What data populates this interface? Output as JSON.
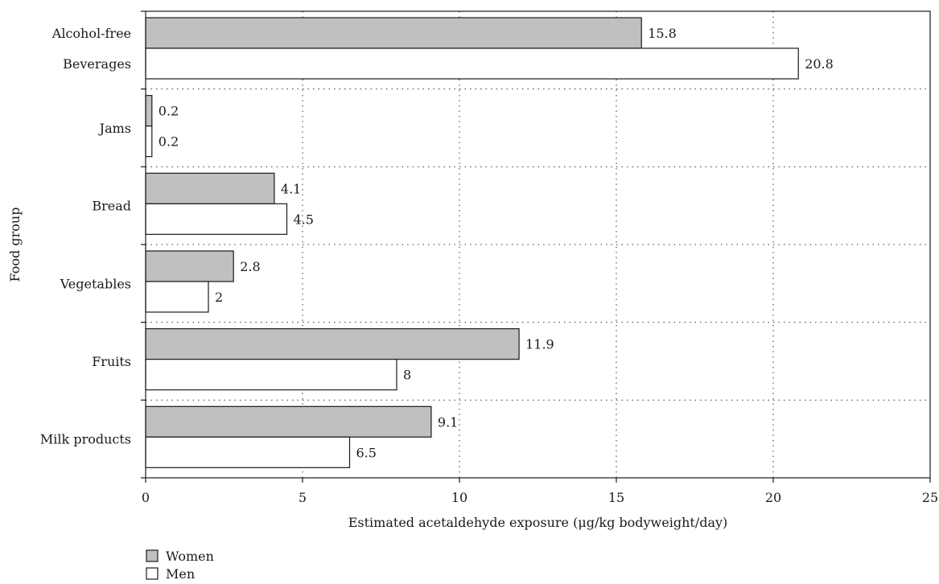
{
  "chart_data": {
    "type": "bar",
    "orientation": "horizontal",
    "categories": [
      [
        "Alcohol-free",
        "Beverages"
      ],
      [
        "Jams"
      ],
      [
        "Bread"
      ],
      [
        "Vegetables"
      ],
      [
        "Fruits"
      ],
      [
        "Milk products"
      ]
    ],
    "series": [
      {
        "name": "Women",
        "color": "#c0c0c0",
        "values": [
          15.8,
          0.2,
          4.1,
          2.8,
          11.9,
          9.1
        ],
        "labels": [
          "15.8",
          "0.2",
          "4.1",
          "2.8",
          "11.9",
          "9.1"
        ]
      },
      {
        "name": "Men",
        "color": "#ffffff",
        "values": [
          20.8,
          0.2,
          4.5,
          2,
          8,
          6.5
        ],
        "labels": [
          "20.8",
          "0.2",
          "4.5",
          "2",
          "8",
          "6.5"
        ]
      }
    ],
    "xlabel": "Estimated acetaldehyde exposure (μg/kg bodyweight/day)",
    "ylabel": "Food group",
    "xlim": [
      0,
      25
    ],
    "xticks": [
      0,
      5,
      10,
      15,
      20,
      25
    ],
    "grid": "dotted",
    "legend": "bottom-left"
  }
}
